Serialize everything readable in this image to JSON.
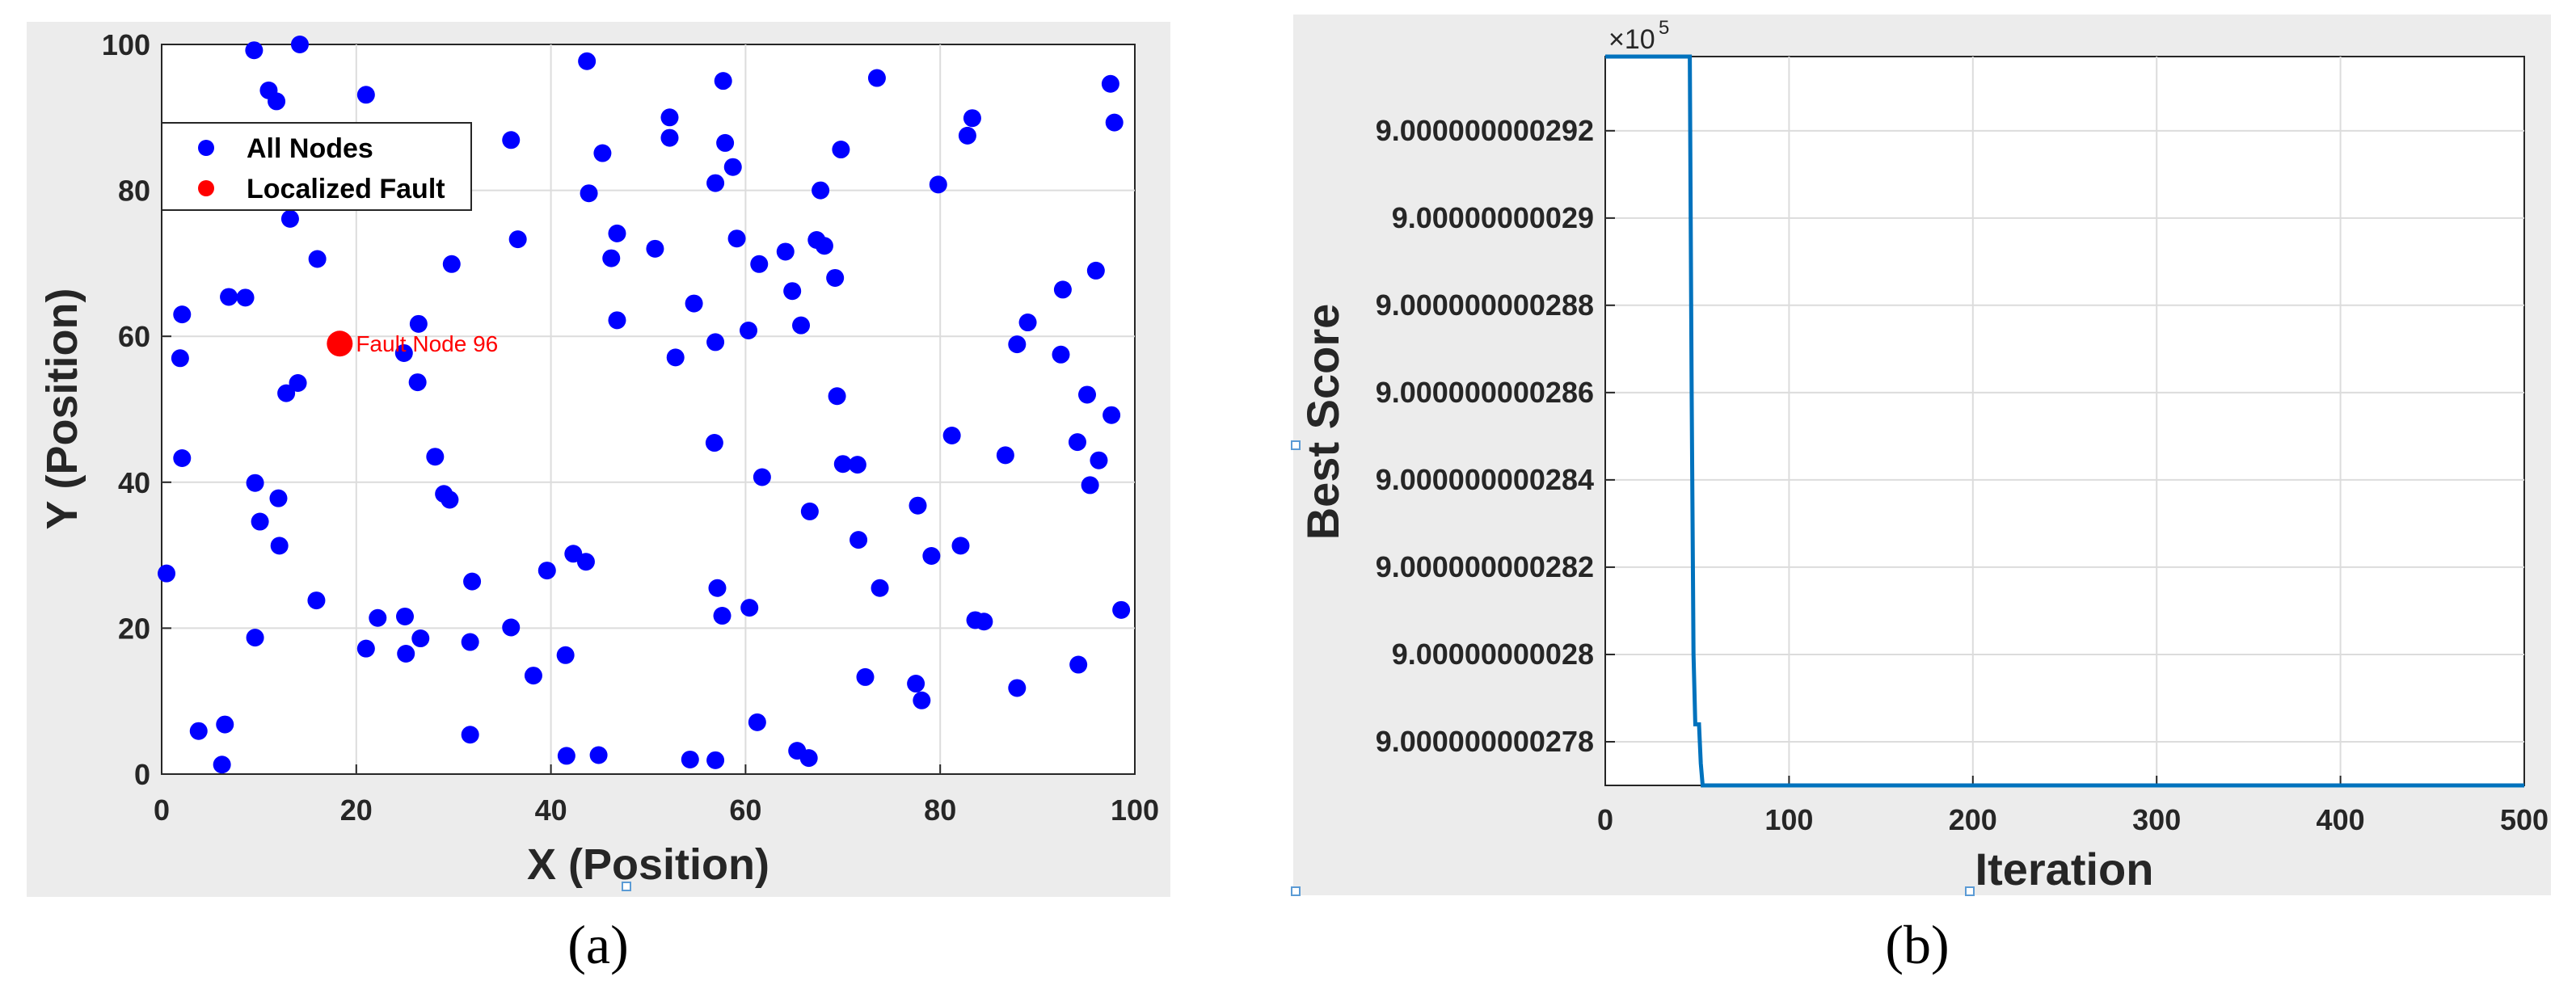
{
  "captions": {
    "a": "(a)",
    "b": "(b)"
  },
  "chart_data": [
    {
      "type": "scatter",
      "title": "",
      "xlabel": "X (Position)",
      "ylabel": "Y (Position)",
      "xlim": [
        0,
        100
      ],
      "ylim": [
        0,
        100
      ],
      "xticks": [
        "0",
        "20",
        "40",
        "60",
        "80",
        "100"
      ],
      "yticks": [
        "0",
        "20",
        "40",
        "60",
        "80",
        "100"
      ],
      "grid": true,
      "legend_position": "upper-left",
      "series": [
        {
          "name": "All Nodes",
          "color": "#0000ff",
          "points": [
            [
              9.5,
              99.2
            ],
            [
              14.2,
              100
            ],
            [
              43.7,
              97.7
            ],
            [
              57.7,
              95
            ],
            [
              73.5,
              95.4
            ],
            [
              97.5,
              94.6
            ],
            [
              11,
              93.7
            ],
            [
              11.8,
              92.2
            ],
            [
              21,
              93.1
            ],
            [
              52.2,
              90
            ],
            [
              83.3,
              89.9
            ],
            [
              97.9,
              89.3
            ],
            [
              35.9,
              86.9
            ],
            [
              52.2,
              87.2
            ],
            [
              57.9,
              86.5
            ],
            [
              82.8,
              87.5
            ],
            [
              45.3,
              85.1
            ],
            [
              69.8,
              85.6
            ],
            [
              58.7,
              83.2
            ],
            [
              56.9,
              81
            ],
            [
              43.9,
              79.6
            ],
            [
              67.7,
              80
            ],
            [
              79.8,
              80.8
            ],
            [
              13.2,
              76.1
            ],
            [
              36.6,
              73.3
            ],
            [
              46.8,
              74.1
            ],
            [
              50.7,
              72
            ],
            [
              59.1,
              73.4
            ],
            [
              64.1,
              71.6
            ],
            [
              67.3,
              73.2
            ],
            [
              68.1,
              72.4
            ],
            [
              16,
              70.6
            ],
            [
              29.8,
              69.9
            ],
            [
              46.2,
              70.7
            ],
            [
              61.4,
              69.9
            ],
            [
              96,
              69
            ],
            [
              69.2,
              68
            ],
            [
              64.8,
              66.2
            ],
            [
              92.6,
              66.4
            ],
            [
              6.9,
              65.4
            ],
            [
              8.6,
              65.3
            ],
            [
              54.7,
              64.5
            ],
            [
              2.1,
              63
            ],
            [
              46.8,
              62.2
            ],
            [
              26.4,
              61.7
            ],
            [
              65.7,
              61.5
            ],
            [
              89,
              61.9
            ],
            [
              60.3,
              60.8
            ],
            [
              56.9,
              59.2
            ],
            [
              87.9,
              58.9
            ],
            [
              1.9,
              57
            ],
            [
              24.9,
              57.7
            ],
            [
              52.8,
              57.1
            ],
            [
              92.4,
              57.5
            ],
            [
              14,
              53.6
            ],
            [
              26.3,
              53.7
            ],
            [
              12.8,
              52.2
            ],
            [
              69.4,
              51.8
            ],
            [
              95.1,
              52
            ],
            [
              97.6,
              49.2
            ],
            [
              56.8,
              45.4
            ],
            [
              81.2,
              46.4
            ],
            [
              94.1,
              45.5
            ],
            [
              2.1,
              43.3
            ],
            [
              28.1,
              43.5
            ],
            [
              86.7,
              43.7
            ],
            [
              70,
              42.5
            ],
            [
              71.5,
              42.4
            ],
            [
              96.3,
              43
            ],
            [
              9.6,
              39.9
            ],
            [
              61.7,
              40.7
            ],
            [
              95.4,
              39.6
            ],
            [
              29,
              38.4
            ],
            [
              29.6,
              37.6
            ],
            [
              12,
              37.8
            ],
            [
              77.7,
              36.8
            ],
            [
              66.6,
              36
            ],
            [
              10.1,
              34.6
            ],
            [
              12.1,
              31.3
            ],
            [
              71.6,
              32.1
            ],
            [
              82.1,
              31.3
            ],
            [
              42.3,
              30.2
            ],
            [
              43.6,
              29.1
            ],
            [
              79.1,
              29.9
            ],
            [
              39.6,
              27.9
            ],
            [
              0.5,
              27.5
            ],
            [
              31.9,
              26.4
            ],
            [
              57.1,
              25.5
            ],
            [
              73.8,
              25.5
            ],
            [
              15.9,
              23.8
            ],
            [
              60.4,
              22.8
            ],
            [
              98.6,
              22.5
            ],
            [
              22.2,
              21.4
            ],
            [
              25,
              21.6
            ],
            [
              57.6,
              21.7
            ],
            [
              83.6,
              21.1
            ],
            [
              84.5,
              20.9
            ],
            [
              35.9,
              20.1
            ],
            [
              9.6,
              18.7
            ],
            [
              26.6,
              18.6
            ],
            [
              31.7,
              18.1
            ],
            [
              21,
              17.2
            ],
            [
              25.1,
              16.5
            ],
            [
              41.5,
              16.3
            ],
            [
              94.2,
              15
            ],
            [
              38.2,
              13.5
            ],
            [
              72.3,
              13.3
            ],
            [
              77.5,
              12.4
            ],
            [
              87.9,
              11.8
            ],
            [
              78.1,
              10.1
            ],
            [
              61.2,
              7.1
            ],
            [
              6.5,
              6.8
            ],
            [
              3.8,
              5.9
            ],
            [
              31.7,
              5.4
            ],
            [
              41.6,
              2.5
            ],
            [
              44.9,
              2.6
            ],
            [
              65.3,
              3.2
            ],
            [
              54.3,
              2
            ],
            [
              56.9,
              1.9
            ],
            [
              66.5,
              2.2
            ],
            [
              6.2,
              1.3
            ]
          ]
        },
        {
          "name": "Localized Fault",
          "color": "#ff0000",
          "points": [
            [
              18.3,
              59
            ]
          ]
        }
      ],
      "annotations": [
        {
          "text": "Fault Node 96",
          "x": 18.3,
          "y": 59,
          "color": "#ff0000"
        }
      ]
    },
    {
      "type": "line",
      "title": "",
      "xlabel": "Iteration",
      "ylabel": "Best Score",
      "xlim": [
        0,
        500
      ],
      "ylim": [
        9.000000000277,
        9.0000000002937
      ],
      "exponent_label": "×10",
      "exponent_power": "5",
      "xticks": [
        "0",
        "100",
        "200",
        "300",
        "400",
        "500"
      ],
      "yticks": [
        {
          "value": 9.000000000278,
          "label": "9.000000000278"
        },
        {
          "value": 9.00000000028,
          "label": "9.00000000028"
        },
        {
          "value": 9.000000000282,
          "label": "9.000000000282"
        },
        {
          "value": 9.000000000284,
          "label": "9.000000000284"
        },
        {
          "value": 9.000000000286,
          "label": "9.000000000286"
        },
        {
          "value": 9.000000000288,
          "label": "9.000000000288"
        },
        {
          "value": 9.00000000029,
          "label": "9.00000000029"
        },
        {
          "value": 9.000000000292,
          "label": "9.000000000292"
        }
      ],
      "grid": true,
      "series": [
        {
          "color": "#0072bd",
          "x": [
            0,
            46,
            47,
            48,
            49,
            50,
            51,
            52,
            53,
            500
          ],
          "y": [
            9.0000000002937,
            9.0000000002937,
            9.000000000286,
            9.00000000028,
            9.0000000002784,
            9.0000000002784,
            9.0000000002784,
            9.0000000002775,
            9.000000000277,
            9.000000000277
          ]
        }
      ]
    }
  ]
}
